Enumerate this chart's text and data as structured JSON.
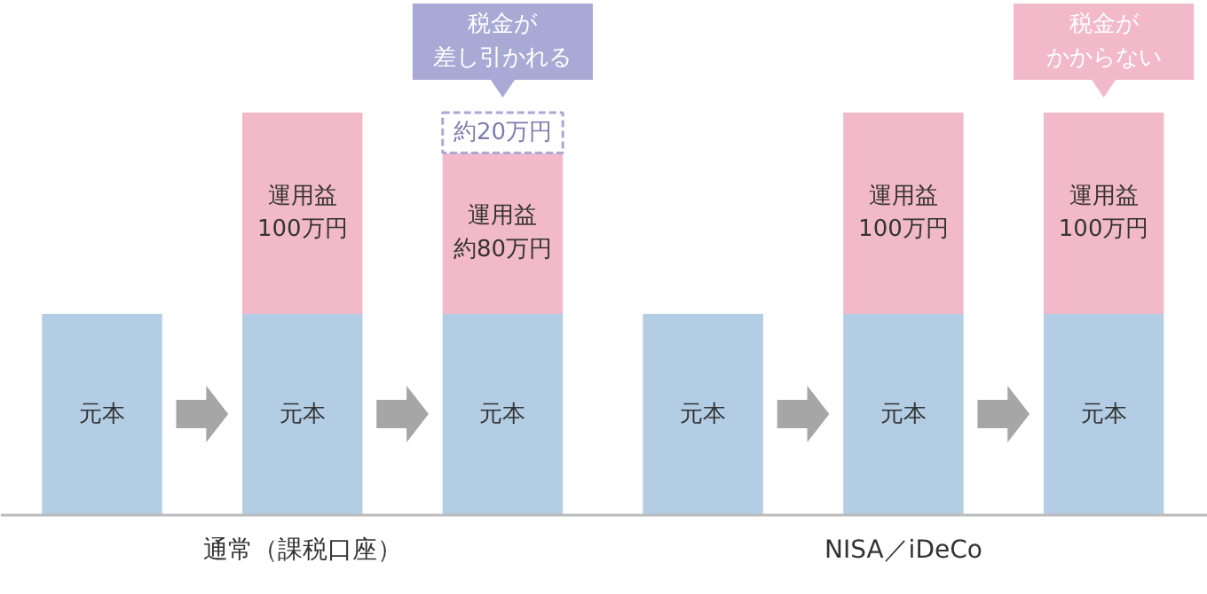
{
  "chart_data": {
    "type": "bar",
    "stacked": true,
    "categories": [
      null,
      null,
      null,
      null,
      null,
      null
    ],
    "series": [
      {
        "color": "#b3cde4",
        "values": [
          100,
          100,
          100,
          100,
          100,
          100
        ],
        "value_labels": [
          "元本",
          "元本",
          "元本",
          "元本",
          "元本",
          "元本"
        ]
      },
      {
        "color": "#f2b9ca",
        "values": [
          null,
          100,
          80,
          null,
          100,
          100
        ],
        "value_labels": [
          null,
          "運用益100万円",
          "運用益約80万円",
          null,
          "運用益100万円",
          "運用益100万円"
        ]
      },
      {
        "color": "#a9a9d6",
        "line_style": "dashed",
        "values": [
          null,
          null,
          20,
          null,
          null,
          null
        ],
        "value_labels": [
          null,
          null,
          "約20万円",
          null,
          null,
          null
        ]
      }
    ],
    "annotations": [
      "通常（課税口座）",
      "NISA／iDeCo",
      "税金が差し引かれる",
      "税金がかからない"
    ],
    "grid": false
  }
}
